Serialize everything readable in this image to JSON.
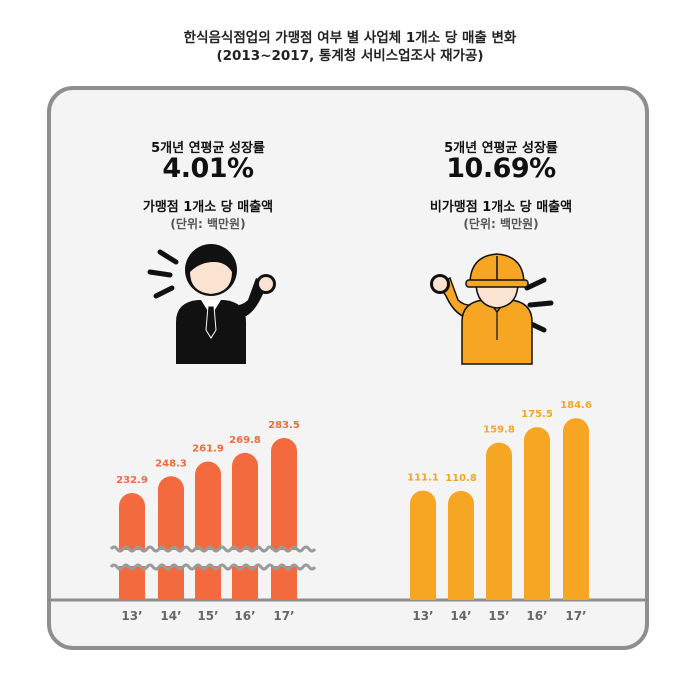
{
  "header": {
    "title_line1": "한식음식점업의 가맹점 여부 별 사업체 1개소 당 매출 변화",
    "title_line2": "(2013~2017, 통계청 서비스업조사 재가공)"
  },
  "colors": {
    "franchise": "#f26a3d",
    "non_franchise": "#f6a623",
    "card_border": "#8e8e8e",
    "card_bg": "#f4f4f4"
  },
  "panels": {
    "left": {
      "growth_label": "5개년 연평균 성장률",
      "growth_value": "4.01%",
      "metric_label": "가맹점 1개소 당 매출액",
      "unit_label": "(단위: 백만원)",
      "icon": "office-worker-icon"
    },
    "right": {
      "growth_label": "5개년 연평균 성장률",
      "growth_value": "10.69%",
      "metric_label": "비가맹점 1개소 당 매출액",
      "unit_label": "(단위: 백만원)",
      "icon": "construction-worker-icon"
    }
  },
  "chart_data": [
    {
      "type": "bar",
      "categories": [
        "13’",
        "14’",
        "15’",
        "16’",
        "17’"
      ],
      "values": [
        232.9,
        248.3,
        261.9,
        269.8,
        283.5
      ],
      "value_labels": [
        "232.9",
        "248.3",
        "261.9",
        "269.8",
        "283.5"
      ],
      "axis_break": true,
      "color": "#f26a3d"
    },
    {
      "type": "bar",
      "categories": [
        "13’",
        "14’",
        "15’",
        "16’",
        "17’"
      ],
      "values": [
        111.1,
        110.8,
        159.8,
        175.5,
        184.6
      ],
      "value_labels": [
        "111.1",
        "110.8",
        "159.8",
        "175.5",
        "184.6"
      ],
      "axis_break": false,
      "color": "#f6a623"
    }
  ]
}
